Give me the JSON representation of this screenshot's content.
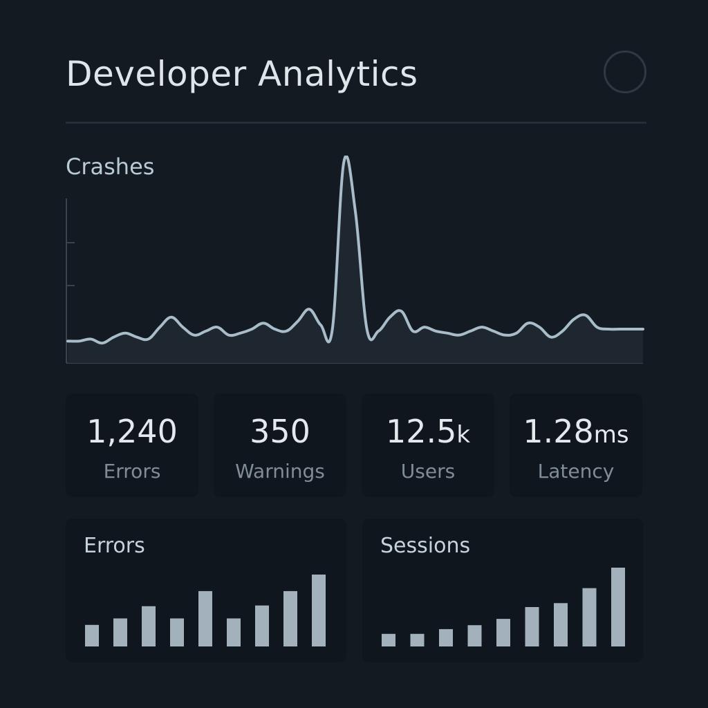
{
  "header": {
    "title": "Developer Analytics",
    "profile_icon": "profile-circle-icon"
  },
  "crash_chart": {
    "label": "Crashes"
  },
  "stats": [
    {
      "value": "1,240",
      "unit": "",
      "label": "Errors"
    },
    {
      "value": "350",
      "unit": "",
      "label": "Warnings"
    },
    {
      "value": "12.5",
      "unit": "k",
      "label": "Users"
    },
    {
      "value": "1.28",
      "unit": "ms",
      "label": "Latency"
    }
  ],
  "panels": {
    "errors_title": "Errors",
    "sessions_title": "Sessions"
  },
  "colors": {
    "background": "#141a22",
    "card": "#10161d",
    "line": "#a9bcca",
    "bar": "#a2b1bc"
  },
  "chart_data": [
    {
      "type": "area",
      "title": "Crashes",
      "x": [
        0,
        1,
        2,
        3,
        4,
        5,
        6,
        7,
        8,
        9,
        10,
        11,
        12,
        13,
        14,
        15,
        16,
        17,
        18,
        19,
        20,
        21,
        22,
        23,
        24,
        25,
        26,
        27,
        28,
        29,
        30,
        31,
        32,
        33,
        34,
        35,
        36,
        37,
        38,
        39,
        40,
        41,
        42,
        43,
        44,
        45,
        46,
        47,
        48,
        49,
        50
      ],
      "values": [
        11,
        11,
        12,
        10,
        13,
        15,
        13,
        12,
        18,
        23,
        18,
        14,
        16,
        18,
        14,
        15,
        17,
        20,
        17,
        16,
        21,
        27,
        19,
        17,
        101,
        76,
        17,
        16,
        23,
        26,
        16,
        18,
        16,
        15,
        14,
        16,
        18,
        16,
        14,
        15,
        20,
        18,
        13,
        16,
        22,
        24,
        18,
        17,
        17,
        17,
        17
      ],
      "ylim": [
        0,
        100
      ],
      "grid": false
    },
    {
      "type": "bar",
      "title": "Errors",
      "categories": [
        "1",
        "2",
        "3",
        "4",
        "5",
        "6",
        "7",
        "8",
        "9"
      ],
      "values": [
        30,
        39,
        56,
        39,
        77,
        39,
        57,
        77,
        100
      ]
    },
    {
      "type": "bar",
      "title": "Sessions",
      "categories": [
        "1",
        "2",
        "3",
        "4",
        "5",
        "6",
        "7",
        "8",
        "9"
      ],
      "values": [
        16,
        16,
        22,
        27,
        35,
        50,
        55,
        74,
        100
      ]
    }
  ]
}
